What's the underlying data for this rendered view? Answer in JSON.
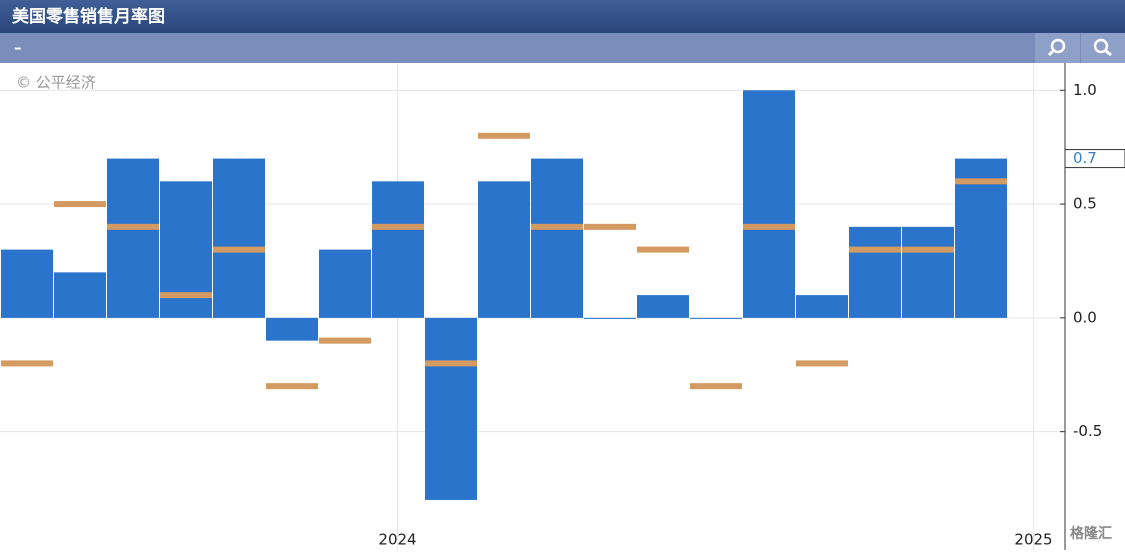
{
  "toolbar": {
    "label": "–"
  },
  "chart_data": {
    "type": "bar",
    "title": "美国零售销售月率图",
    "annotations": [
      "© 公平经济",
      "格隆汇"
    ],
    "categories": [
      null,
      null,
      null,
      null,
      null,
      null,
      null,
      "2024",
      null,
      null,
      null,
      null,
      null,
      null,
      null,
      null,
      null,
      null,
      null,
      "2025"
    ],
    "series": [
      {
        "color": "#2a74cc",
        "values": [
          0.3,
          0.2,
          0.7,
          0.6,
          0.7,
          -0.1,
          0.3,
          0.6,
          -0.8,
          0.6,
          0.7,
          0.0,
          0.1,
          0.0,
          1.0,
          0.1,
          0.4,
          0.4,
          0.7,
          null
        ]
      },
      {
        "color": "#d39a62",
        "values": [
          -0.2,
          0.5,
          0.4,
          0.1,
          0.3,
          -0.3,
          -0.1,
          0.4,
          -0.2,
          0.8,
          0.4,
          0.4,
          0.3,
          -0.3,
          0.4,
          -0.2,
          0.3,
          0.3,
          0.6,
          null
        ]
      }
    ],
    "ylim": [
      -1.02,
      1.12
    ],
    "yticks": [
      {
        "value": -0.5,
        "label": "-0.5"
      },
      {
        "value": 0,
        "label": "0.0"
      },
      {
        "value": 0.5,
        "label": "0.5"
      },
      {
        "value": 1,
        "label": "1.0"
      }
    ],
    "grid": true
  }
}
